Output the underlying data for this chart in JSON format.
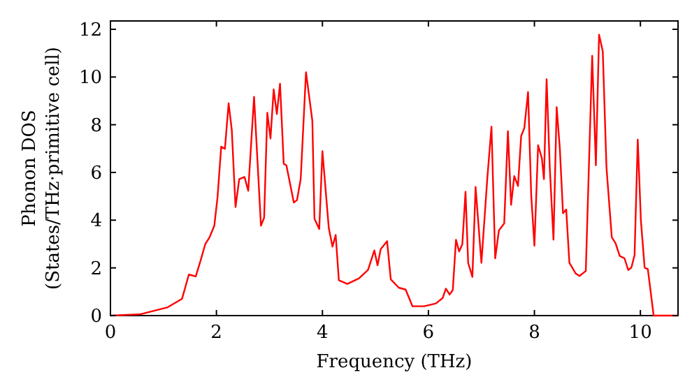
{
  "chart_data": {
    "type": "line",
    "xlabel": "Frequency (THz)",
    "ylabel": "Phonon DOS\n(States/THz·primitive cell)",
    "xlim": [
      0,
      10.71
    ],
    "ylim": [
      0,
      12.35
    ],
    "xticks": [
      0,
      2,
      4,
      6,
      8,
      10
    ],
    "yticks": [
      0,
      2,
      4,
      6,
      8,
      10,
      12
    ],
    "grid": false,
    "marker": "none",
    "line_style": "solid",
    "series": [
      {
        "color": "#ff0000",
        "x": [
          0,
          0.55,
          1.08,
          1.35,
          1.48,
          1.61,
          1.7,
          1.79,
          1.87,
          1.96,
          2.02,
          2.09,
          2.16,
          2.23,
          2.29,
          2.36,
          2.43,
          2.53,
          2.6,
          2.71,
          2.84,
          2.9,
          2.96,
          3.02,
          3.08,
          3.14,
          3.2,
          3.27,
          3.32,
          3.46,
          3.52,
          3.59,
          3.69,
          3.81,
          3.85,
          3.94,
          4.0,
          4.12,
          4.19,
          4.25,
          4.31,
          4.47,
          4.69,
          4.86,
          4.98,
          5.04,
          5.1,
          5.22,
          5.29,
          5.44,
          5.57,
          5.7,
          5.92,
          6.14,
          6.27,
          6.33,
          6.4,
          6.46,
          6.52,
          6.58,
          6.64,
          6.7,
          6.75,
          6.83,
          6.89,
          7.0,
          7.11,
          7.19,
          7.26,
          7.33,
          7.43,
          7.5,
          7.56,
          7.62,
          7.69,
          7.75,
          7.81,
          7.88,
          7.94,
          8.0,
          8.07,
          8.14,
          8.18,
          8.23,
          8.29,
          8.36,
          8.42,
          8.48,
          8.54,
          8.6,
          8.66,
          8.78,
          8.85,
          8.97,
          9.09,
          9.16,
          9.22,
          9.29,
          9.36,
          9.46,
          9.53,
          9.61,
          9.7,
          9.77,
          9.83,
          9.89,
          9.95,
          10.01,
          10.08,
          10.14,
          10.25,
          10.71
        ],
        "values": [
          0,
          0.05,
          0.35,
          0.7,
          1.72,
          1.64,
          2.3,
          3.0,
          3.28,
          3.77,
          4.94,
          7.08,
          6.99,
          8.9,
          7.77,
          4.55,
          5.72,
          5.81,
          5.23,
          9.17,
          3.77,
          4.1,
          8.5,
          7.42,
          9.48,
          8.45,
          9.72,
          6.36,
          6.3,
          4.74,
          4.84,
          5.72,
          10.2,
          8.16,
          4.06,
          3.63,
          6.89,
          3.67,
          2.89,
          3.38,
          1.48,
          1.33,
          1.56,
          1.91,
          2.73,
          2.11,
          2.79,
          3.12,
          1.52,
          1.17,
          1.09,
          0.39,
          0.39,
          0.51,
          0.74,
          1.13,
          0.88,
          1.07,
          3.18,
          2.69,
          2.99,
          5.19,
          2.21,
          1.62,
          5.39,
          2.21,
          5.72,
          7.92,
          2.4,
          3.57,
          3.86,
          7.73,
          4.64,
          5.85,
          5.43,
          7.53,
          7.86,
          9.37,
          5.04,
          2.93,
          7.14,
          6.6,
          5.72,
          9.91,
          6.2,
          3.18,
          8.74,
          6.99,
          4.29,
          4.45,
          2.21,
          1.76,
          1.66,
          1.87,
          10.89,
          6.3,
          11.77,
          11.08,
          6.2,
          3.28,
          3.04,
          2.5,
          2.4,
          1.91,
          2.01,
          2.54,
          7.38,
          3.96,
          2.01,
          1.95,
          0,
          0
        ]
      }
    ]
  }
}
